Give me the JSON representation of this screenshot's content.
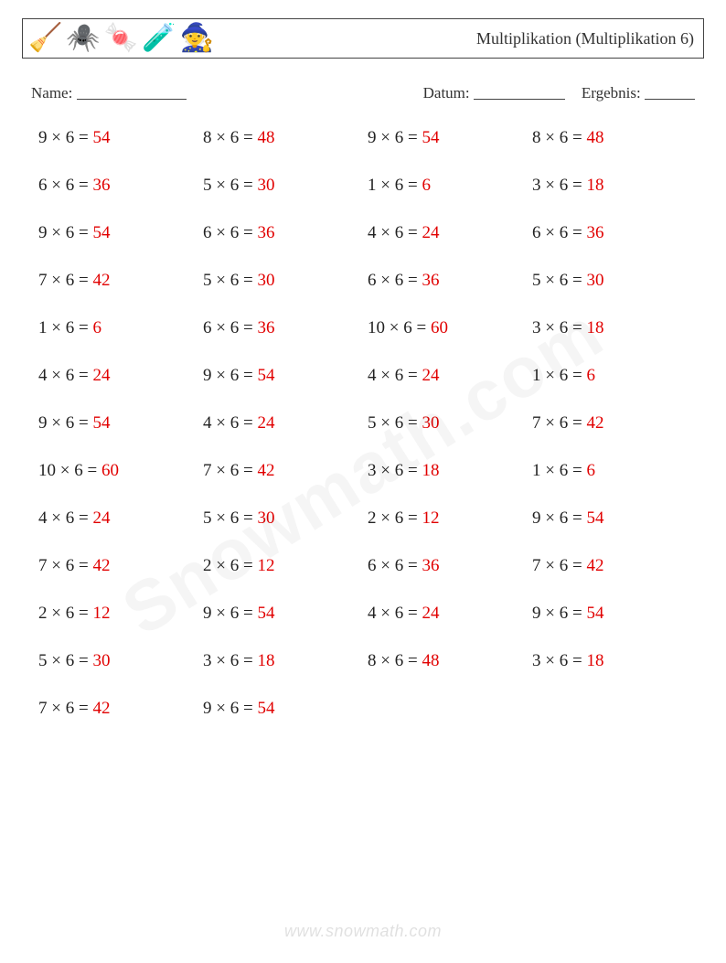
{
  "header": {
    "title": "Multiplikation (Multiplikation 6)",
    "icons": [
      "🧹",
      "🕷️",
      "🍬",
      "🧪",
      "🧙"
    ]
  },
  "meta": {
    "name_label": "Name:",
    "date_label": "Datum:",
    "result_label": "Ergebnis:"
  },
  "layout": {
    "columns": 4,
    "rows": 13,
    "font_size_pt": 19,
    "answer_color": "#e10000",
    "text_color": "#222222",
    "background_color": "#ffffff"
  },
  "problems": [
    {
      "a": 9,
      "b": 6,
      "ans": 54
    },
    {
      "a": 8,
      "b": 6,
      "ans": 48
    },
    {
      "a": 9,
      "b": 6,
      "ans": 54
    },
    {
      "a": 8,
      "b": 6,
      "ans": 48
    },
    {
      "a": 6,
      "b": 6,
      "ans": 36
    },
    {
      "a": 5,
      "b": 6,
      "ans": 30
    },
    {
      "a": 1,
      "b": 6,
      "ans": 6
    },
    {
      "a": 3,
      "b": 6,
      "ans": 18
    },
    {
      "a": 9,
      "b": 6,
      "ans": 54
    },
    {
      "a": 6,
      "b": 6,
      "ans": 36
    },
    {
      "a": 4,
      "b": 6,
      "ans": 24
    },
    {
      "a": 6,
      "b": 6,
      "ans": 36
    },
    {
      "a": 7,
      "b": 6,
      "ans": 42
    },
    {
      "a": 5,
      "b": 6,
      "ans": 30
    },
    {
      "a": 6,
      "b": 6,
      "ans": 36
    },
    {
      "a": 5,
      "b": 6,
      "ans": 30
    },
    {
      "a": 1,
      "b": 6,
      "ans": 6
    },
    {
      "a": 6,
      "b": 6,
      "ans": 36
    },
    {
      "a": 10,
      "b": 6,
      "ans": 60
    },
    {
      "a": 3,
      "b": 6,
      "ans": 18
    },
    {
      "a": 4,
      "b": 6,
      "ans": 24
    },
    {
      "a": 9,
      "b": 6,
      "ans": 54
    },
    {
      "a": 4,
      "b": 6,
      "ans": 24
    },
    {
      "a": 1,
      "b": 6,
      "ans": 6
    },
    {
      "a": 9,
      "b": 6,
      "ans": 54
    },
    {
      "a": 4,
      "b": 6,
      "ans": 24
    },
    {
      "a": 5,
      "b": 6,
      "ans": 30
    },
    {
      "a": 7,
      "b": 6,
      "ans": 42
    },
    {
      "a": 10,
      "b": 6,
      "ans": 60
    },
    {
      "a": 7,
      "b": 6,
      "ans": 42
    },
    {
      "a": 3,
      "b": 6,
      "ans": 18
    },
    {
      "a": 1,
      "b": 6,
      "ans": 6
    },
    {
      "a": 4,
      "b": 6,
      "ans": 24
    },
    {
      "a": 5,
      "b": 6,
      "ans": 30
    },
    {
      "a": 2,
      "b": 6,
      "ans": 12
    },
    {
      "a": 9,
      "b": 6,
      "ans": 54
    },
    {
      "a": 7,
      "b": 6,
      "ans": 42
    },
    {
      "a": 2,
      "b": 6,
      "ans": 12
    },
    {
      "a": 6,
      "b": 6,
      "ans": 36
    },
    {
      "a": 7,
      "b": 6,
      "ans": 42
    },
    {
      "a": 2,
      "b": 6,
      "ans": 12
    },
    {
      "a": 9,
      "b": 6,
      "ans": 54
    },
    {
      "a": 4,
      "b": 6,
      "ans": 24
    },
    {
      "a": 9,
      "b": 6,
      "ans": 54
    },
    {
      "a": 5,
      "b": 6,
      "ans": 30
    },
    {
      "a": 3,
      "b": 6,
      "ans": 18
    },
    {
      "a": 8,
      "b": 6,
      "ans": 48
    },
    {
      "a": 3,
      "b": 6,
      "ans": 18
    },
    {
      "a": 7,
      "b": 6,
      "ans": 42
    },
    {
      "a": 9,
      "b": 6,
      "ans": 54
    }
  ],
  "watermark": "Snowmath.com",
  "footer": "www.snowmath.com"
}
